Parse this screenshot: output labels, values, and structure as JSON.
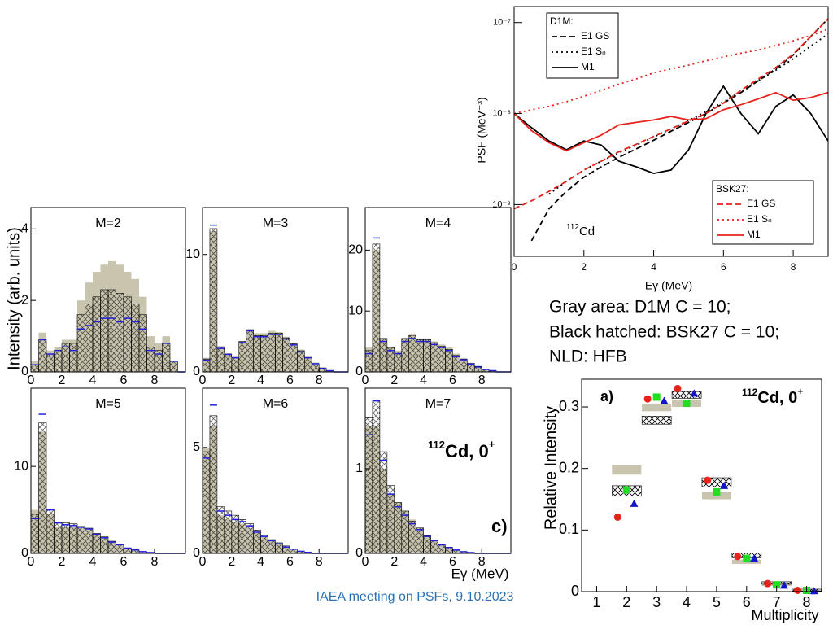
{
  "chart_data": [
    {
      "type": "line",
      "log_y": true,
      "x_label": "Eγ (MeV)",
      "y_label": "PSF (MeV⁻³)",
      "annotation_mass": "112",
      "annotation": "Cd",
      "xlim": [
        0,
        9
      ],
      "xticks": [
        0,
        2,
        4,
        6,
        8
      ],
      "ylim": [
        2.7e-10,
        1.5e-07
      ],
      "yticks": [
        {
          "value": 1e-09,
          "label": "10⁻⁹"
        },
        {
          "value": 1e-08,
          "label": "10⁻⁸"
        },
        {
          "value": 1e-07,
          "label": "10⁻⁷"
        }
      ],
      "x": [
        0,
        0.5,
        1,
        1.5,
        2,
        2.5,
        3,
        3.5,
        4,
        4.5,
        5,
        5.5,
        6,
        6.5,
        7,
        7.5,
        8,
        8.5,
        9
      ],
      "series_groups": [
        {
          "title": "D1M:",
          "series": [
            {
              "name": "E1 GS",
              "color": "#000000",
              "dash": "dashed",
              "values": [
                null,
                4e-10,
                9e-10,
                1.4e-09,
                2e-09,
                2.6e-09,
                3.3e-09,
                4.1e-09,
                5.1e-09,
                6.4e-09,
                8e-09,
                1e-08,
                1.3e-08,
                1.7e-08,
                2.3e-08,
                3.1e-08,
                4.4e-08,
                7e-08,
                1.1e-07
              ]
            },
            {
              "name": "E1 Sₙ",
              "color": "#000000",
              "dash": "dotted",
              "values": [
                null,
                null,
                1.3e-09,
                1.8e-09,
                2.4e-09,
                3e-09,
                3.7e-09,
                4.5e-09,
                5.5e-09,
                6.8e-09,
                8.4e-09,
                1.05e-08,
                1.35e-08,
                1.75e-08,
                2.3e-08,
                3e-08,
                4e-08,
                5.5e-08,
                7.5e-08
              ]
            },
            {
              "name": "M1",
              "color": "#000000",
              "dash": "solid",
              "values": [
                1e-08,
                7e-09,
                5e-09,
                4e-09,
                5e-09,
                4.5e-09,
                3e-09,
                2.6e-09,
                2.2e-09,
                2.4e-09,
                4e-09,
                1e-08,
                2e-08,
                1e-08,
                6e-09,
                1.2e-08,
                1.6e-08,
                1e-08,
                5e-09
              ]
            }
          ]
        },
        {
          "title": "BSK27:",
          "series": [
            {
              "name": "E1 GS",
              "color": "#e8221b",
              "dash": "dashed",
              "values": [
                9e-10,
                1.1e-09,
                1.4e-09,
                1.8e-09,
                2.4e-09,
                3e-09,
                3.8e-09,
                4.6e-09,
                5.6e-09,
                6.8e-09,
                8.3e-09,
                1e-08,
                1.3e-08,
                1.8e-08,
                2.4e-08,
                3.2e-08,
                4.5e-08,
                7e-08,
                1.1e-07
              ]
            },
            {
              "name": "E1 Sₙ",
              "color": "#e8221b",
              "dash": "dotted",
              "values": [
                1e-08,
                1.1e-08,
                1.2e-08,
                1.35e-08,
                1.55e-08,
                1.8e-08,
                2.1e-08,
                2.4e-08,
                2.8e-08,
                3.1e-08,
                3.4e-08,
                3.8e-08,
                4.2e-08,
                4.6e-08,
                5e-08,
                5.6e-08,
                6.3e-08,
                7.2e-08,
                8.5e-08
              ]
            },
            {
              "name": "M1",
              "color": "#e8221b",
              "dash": "solid",
              "values": [
                1e-08,
                6.5e-09,
                4.8e-09,
                3.9e-09,
                4.8e-09,
                5.8e-09,
                7.5e-09,
                8e-09,
                8.5e-09,
                9.3e-09,
                8.5e-09,
                8.8e-09,
                1.1e-08,
                1.25e-08,
                1.45e-08,
                1.7e-08,
                1.4e-08,
                1.5e-08,
                1.7e-08
              ]
            }
          ]
        }
      ]
    },
    {
      "type": "step_panels",
      "y_label": "Intensity (arb. units)",
      "x_label": "Eγ (MeV)",
      "annotation_mass": "112",
      "annotation": "Cd, 0",
      "annotation_sup": "+",
      "panel_label": "c)",
      "xlim": [
        0,
        10
      ],
      "xticks": [
        0,
        2,
        4,
        6,
        8
      ],
      "bins": [
        0,
        0.5,
        1,
        1.5,
        2,
        2.5,
        3,
        3.5,
        4,
        4.5,
        5,
        5.5,
        6,
        6.5,
        7,
        7.5,
        8,
        8.5,
        9,
        9.5,
        10
      ],
      "panels": [
        {
          "title": "M=2",
          "ylim": [
            0,
            4.6
          ],
          "yticks": [
            0,
            2,
            4
          ],
          "series": [
            {
              "color": "#c9c4ae",
              "style": "area",
              "values": [
                0.3,
                1.1,
                0.6,
                0.7,
                0.9,
                0.9,
                2.0,
                2.5,
                2.8,
                3.0,
                3.1,
                3.0,
                2.8,
                2.6,
                2.1,
                1.0,
                0.8,
                1.0,
                0.3,
                0
              ]
            },
            {
              "color": "#000000",
              "style": "hatched",
              "values": [
                0.2,
                0.9,
                0.5,
                0.6,
                0.8,
                0.8,
                1.6,
                1.9,
                2.1,
                2.3,
                2.3,
                2.2,
                2.1,
                1.9,
                1.6,
                0.7,
                0.6,
                0.8,
                0.3,
                0
              ]
            },
            {
              "color": "#2222dd",
              "style": "step",
              "values": [
                0.2,
                0.9,
                0.5,
                0.6,
                0.7,
                0.6,
                1.2,
                1.3,
                1.4,
                1.5,
                1.5,
                1.4,
                1.5,
                1.4,
                1.2,
                0.6,
                0.5,
                0.8,
                0.3,
                0
              ]
            }
          ]
        },
        {
          "title": "M=3",
          "ylim": [
            0,
            14
          ],
          "yticks": [
            0,
            10
          ],
          "series": [
            {
              "color": "#c9c4ae",
              "style": "area",
              "values": [
                1.2,
                12,
                2.2,
                1.6,
                1.3,
                2.6,
                3.6,
                3.3,
                3.3,
                3.5,
                3.4,
                3.0,
                2.5,
                1.9,
                1.3,
                0.8,
                0.4,
                0.1,
                0,
                0
              ]
            },
            {
              "color": "#000000",
              "style": "hatched",
              "values": [
                1.1,
                12.2,
                2.1,
                1.5,
                1.2,
                2.6,
                3.6,
                3.1,
                3.1,
                3.3,
                3.3,
                2.9,
                2.4,
                1.8,
                1.2,
                0.7,
                0.3,
                0.1,
                0,
                0
              ]
            },
            {
              "color": "#2222dd",
              "style": "step",
              "values": [
                1,
                12.5,
                2,
                1.5,
                1.2,
                2.5,
                3.5,
                3,
                3,
                3.2,
                3.2,
                2.8,
                2.3,
                1.7,
                1.2,
                0.7,
                0.3,
                0.1,
                0,
                0
              ]
            }
          ]
        },
        {
          "title": "M=4",
          "ylim": [
            0,
            27
          ],
          "yticks": [
            0,
            10,
            20
          ],
          "series": [
            {
              "color": "#c9c4ae",
              "style": "area",
              "values": [
                4,
                20,
                5.5,
                4,
                3.5,
                5.5,
                6,
                5.5,
                5.5,
                5,
                4.5,
                4,
                3,
                2.3,
                1.5,
                1,
                0.5,
                0.2,
                0,
                0
              ]
            },
            {
              "color": "#000000",
              "style": "hatched",
              "values": [
                3.5,
                21,
                5.5,
                4,
                3.3,
                5.5,
                6,
                5.3,
                5.3,
                4.8,
                4.2,
                3.7,
                2.7,
                2.1,
                1.4,
                0.9,
                0.4,
                0.2,
                0,
                0
              ]
            },
            {
              "color": "#2222dd",
              "style": "step",
              "values": [
                3,
                22,
                5,
                3.5,
                3,
                5,
                5.5,
                5,
                5,
                4.5,
                4,
                3.5,
                2.5,
                2,
                1.3,
                0.8,
                0.4,
                0.2,
                0,
                0
              ]
            }
          ]
        },
        {
          "title": "M=5",
          "ylim": [
            0,
            19
          ],
          "yticks": [
            0,
            10
          ],
          "series": [
            {
              "color": "#c9c4ae",
              "style": "area",
              "values": [
                5,
                14,
                4.5,
                3,
                3,
                3,
                2.9,
                2.7,
                2.3,
                1.9,
                1.4,
                1.1,
                0.7,
                0.4,
                0.2,
                0.1,
                0,
                0,
                0,
                0
              ]
            },
            {
              "color": "#000000",
              "style": "hatched",
              "values": [
                4.5,
                15,
                5,
                3.5,
                3.5,
                3.4,
                3.1,
                2.9,
                2.3,
                1.9,
                1.4,
                1,
                0.6,
                0.4,
                0.2,
                0.1,
                0,
                0,
                0,
                0
              ]
            },
            {
              "color": "#2222dd",
              "style": "step",
              "values": [
                4,
                16,
                5,
                3.5,
                3.3,
                3.2,
                3,
                2.8,
                2.2,
                1.8,
                1.3,
                1,
                0.6,
                0.4,
                0.2,
                0.1,
                0,
                0,
                0,
                0
              ]
            }
          ]
        },
        {
          "title": "M=6",
          "ylim": [
            0,
            7.8
          ],
          "yticks": [
            0,
            5
          ],
          "series": [
            {
              "color": "#c9c4ae",
              "style": "area",
              "values": [
                5,
                6,
                1.8,
                1.6,
                1.5,
                1.4,
                1.2,
                1,
                0.8,
                0.6,
                0.45,
                0.3,
                0.2,
                0.1,
                0.05,
                0,
                0,
                0,
                0,
                0
              ]
            },
            {
              "color": "#000000",
              "style": "hatched",
              "values": [
                4.8,
                6.5,
                2.2,
                2,
                1.8,
                1.6,
                1.4,
                1.1,
                0.85,
                0.65,
                0.5,
                0.35,
                0.2,
                0.1,
                0.05,
                0,
                0,
                0,
                0,
                0
              ]
            },
            {
              "color": "#2222dd",
              "style": "step",
              "values": [
                4.5,
                7,
                2,
                1.8,
                1.6,
                1.5,
                1.3,
                1,
                0.8,
                0.6,
                0.45,
                0.3,
                0.2,
                0.1,
                0.05,
                0,
                0,
                0,
                0,
                0
              ]
            }
          ]
        },
        {
          "title": "M=7",
          "ylim": [
            0,
            1.95
          ],
          "yticks": [
            0,
            1
          ],
          "series": [
            {
              "color": "#c9c4ae",
              "style": "area",
              "values": [
                1.5,
                1.5,
                1.0,
                0.7,
                0.6,
                0.5,
                0.4,
                0.3,
                0.22,
                0.16,
                0.11,
                0.07,
                0.04,
                0.02,
                0.01,
                0,
                0,
                0,
                0,
                0
              ]
            },
            {
              "color": "#000000",
              "style": "hatched",
              "values": [
                1.6,
                1.8,
                1.2,
                0.8,
                0.6,
                0.5,
                0.38,
                0.3,
                0.21,
                0.15,
                0.1,
                0.07,
                0.04,
                0.02,
                0.01,
                0,
                0,
                0,
                0,
                0
              ]
            },
            {
              "color": "#2222dd",
              "style": "step",
              "values": [
                1.4,
                1.8,
                1.1,
                0.7,
                0.55,
                0.45,
                0.35,
                0.28,
                0.2,
                0.15,
                0.1,
                0.07,
                0.04,
                0.02,
                0.01,
                0,
                0,
                0,
                0,
                0
              ]
            }
          ]
        }
      ]
    },
    {
      "type": "scatter",
      "x_label": "Multiplicity",
      "y_label": "Relative Intensity",
      "panel_label": "a)",
      "annotation_mass": "112",
      "annotation": "Cd, 0",
      "annotation_sup": "+",
      "xlim": [
        0.5,
        8.5
      ],
      "xticks": [
        1,
        2,
        3,
        4,
        5,
        6,
        7,
        8
      ],
      "ylim": [
        0,
        0.345
      ],
      "yticks": [
        0,
        0.1,
        0.2,
        0.3
      ],
      "x": [
        2,
        3,
        4,
        5,
        6,
        7,
        8
      ],
      "boxes": [
        {
          "color": "#c9c4ae",
          "style": "area",
          "low": [
            0.19,
            0.293,
            0.3,
            0.15,
            0.045,
            0.009,
            0
          ],
          "high": [
            0.205,
            0.305,
            0.312,
            0.162,
            0.052,
            0.013,
            0.003
          ]
        },
        {
          "color": "#000000",
          "style": "hatched",
          "low": [
            0.155,
            0.272,
            0.314,
            0.17,
            0.055,
            0.012,
            0.001
          ],
          "high": [
            0.172,
            0.285,
            0.325,
            0.185,
            0.063,
            0.016,
            0.004
          ]
        }
      ],
      "series": [
        {
          "color": "#e8221b",
          "marker": "circle",
          "offset": -0.3,
          "values": [
            0.121,
            0.313,
            0.33,
            0.181,
            0.057,
            0.013,
            0.002
          ]
        },
        {
          "color": "#22dd22",
          "marker": "square",
          "offset": 0,
          "values": [
            0.165,
            0.316,
            0.306,
            0.162,
            0.054,
            0.011,
            0.002
          ]
        },
        {
          "color": "#1414cc",
          "marker": "triangle",
          "offset": 0.25,
          "values": [
            0.143,
            0.31,
            0.322,
            0.172,
            0.054,
            0.01,
            0.001
          ]
        }
      ]
    }
  ],
  "notes": [
    "Gray area: D1M C = 10;",
    "Black hatched: BSK27 C = 10;",
    "NLD: HFB"
  ],
  "footer": "IAEA meeting on PSFs, 9.10.2023"
}
